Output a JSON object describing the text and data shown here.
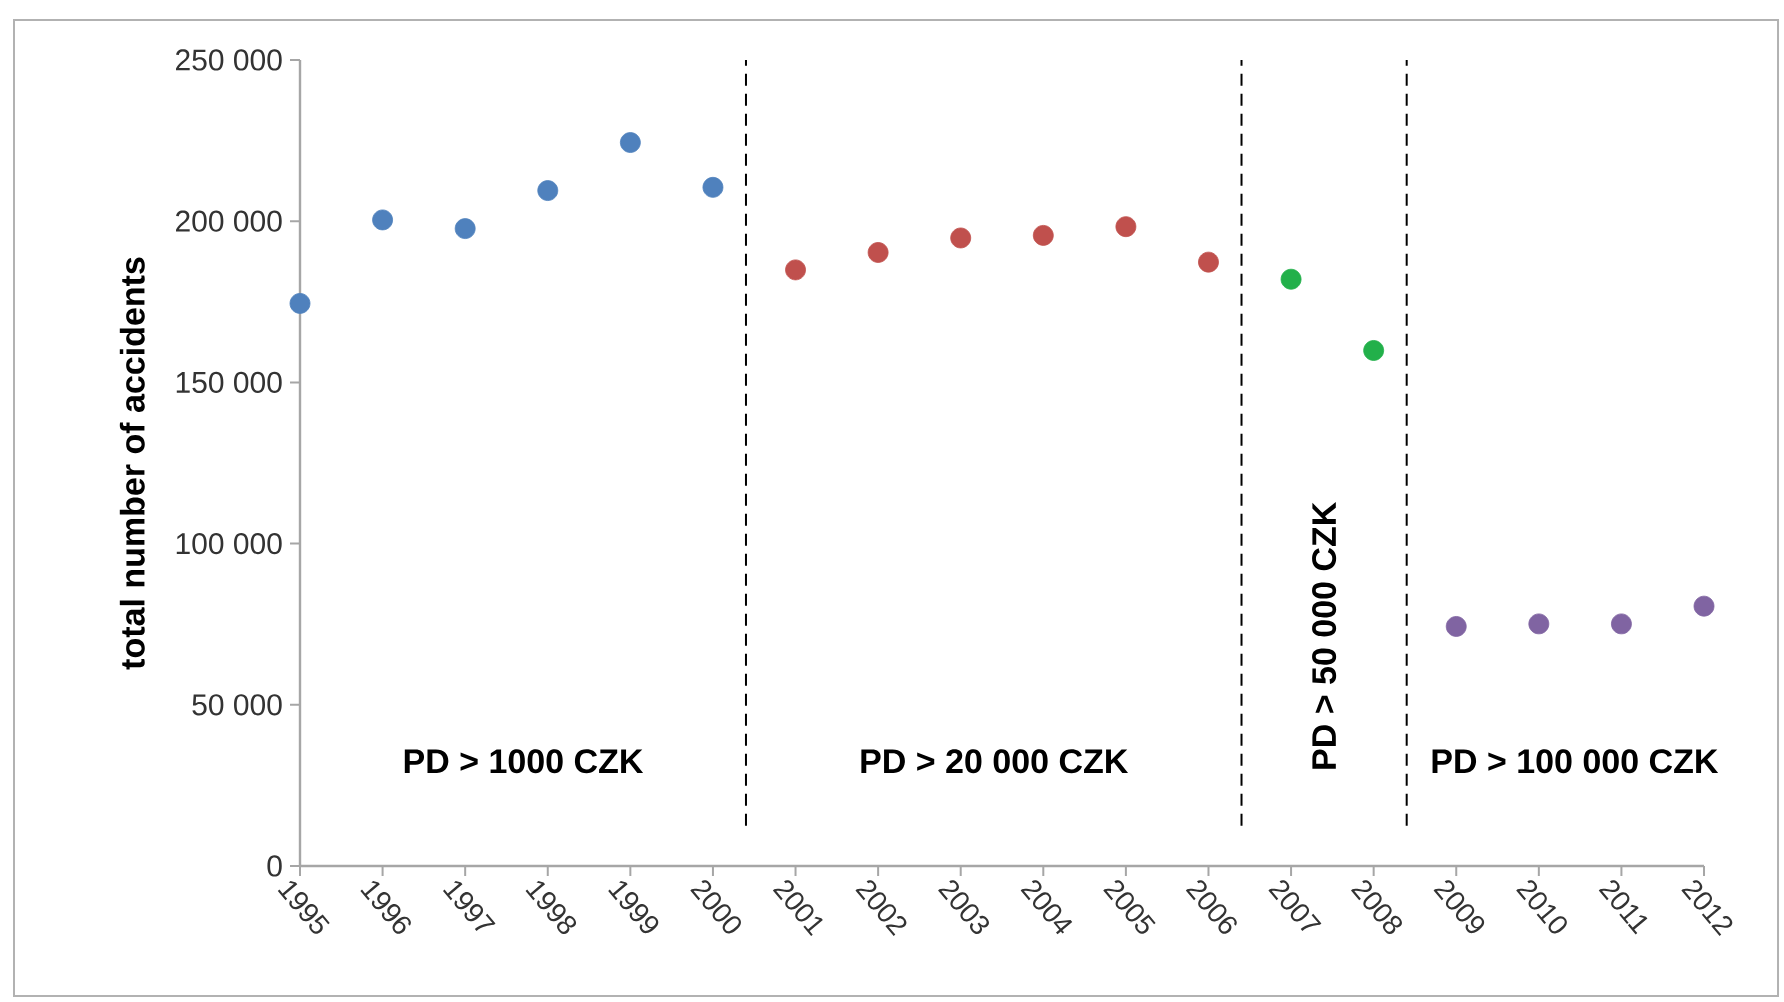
{
  "chart_data": {
    "type": "scatter",
    "ylabel": "total number of accidents",
    "xlim": [
      1995,
      2012
    ],
    "xticks": [
      1995,
      1996,
      1997,
      1998,
      1999,
      2000,
      2001,
      2002,
      2003,
      2004,
      2005,
      2006,
      2007,
      2008,
      2009,
      2010,
      2011,
      2012
    ],
    "ylim": [
      0,
      250000
    ],
    "yticks": [
      {
        "value": 0,
        "label": "0"
      },
      {
        "value": 50000,
        "label": "50 000"
      },
      {
        "value": 100000,
        "label": "100 000"
      },
      {
        "value": 150000,
        "label": "150 000"
      },
      {
        "value": 200000,
        "label": "200 000"
      },
      {
        "value": 250000,
        "label": "250 000"
      }
    ],
    "marker": "circle",
    "grid": false,
    "series": [
      {
        "color": "#4f81bd",
        "x": [
          1995,
          1996,
          1997,
          1998,
          1999,
          2000
        ],
        "values": [
          174500,
          200400,
          197700,
          209500,
          224400,
          210500
        ]
      },
      {
        "color": "#c0504d",
        "x": [
          2001,
          2002,
          2003,
          2004,
          2005,
          2006
        ],
        "values": [
          184900,
          190300,
          194800,
          195600,
          198300,
          187300
        ]
      },
      {
        "color": "#22b04a",
        "x": [
          2007,
          2008
        ],
        "values": [
          182000,
          159900
        ]
      },
      {
        "color": "#8064a2",
        "x": [
          2009,
          2010,
          2011,
          2012
        ],
        "values": [
          74300,
          75100,
          75100,
          80600
        ]
      }
    ],
    "ref_lines": [
      {
        "axis": "x",
        "value": 2000.4,
        "color": "#000000",
        "line_style": "dashed"
      },
      {
        "axis": "x",
        "value": 2006.4,
        "color": "#000000",
        "line_style": "dashed"
      },
      {
        "axis": "x",
        "value": 2008.4,
        "color": "#000000",
        "line_style": "dashed"
      }
    ],
    "annotations": [
      "PD > 1000 CZK",
      "PD > 20 000 CZK",
      "PD > 50 000 CZK",
      "PD > 100 000 CZK"
    ]
  }
}
